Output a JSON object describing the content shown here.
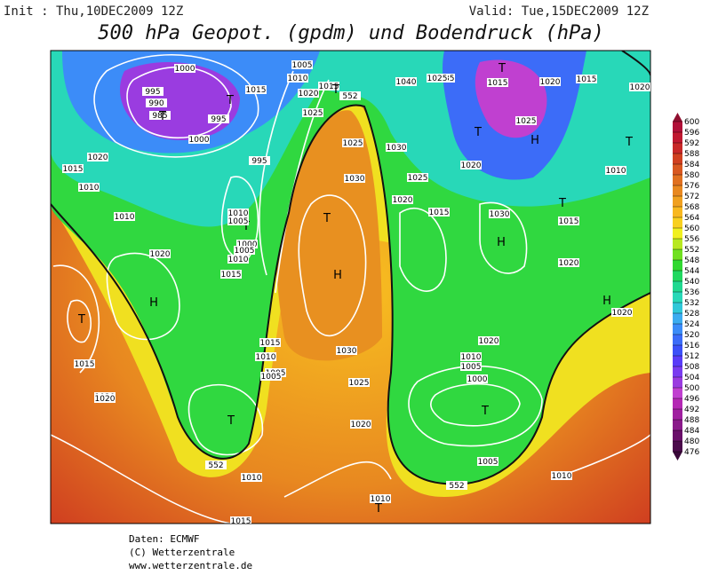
{
  "header": {
    "init": "Init : Thu,10DEC2009 12Z",
    "valid": "Valid: Tue,15DEC2009 12Z",
    "title": "500 hPa Geopot. (gpdm) und Bodendruck (hPa)"
  },
  "colorbar": {
    "ticks": [
      476,
      480,
      484,
      488,
      492,
      496,
      500,
      504,
      508,
      512,
      516,
      520,
      524,
      528,
      532,
      536,
      540,
      544,
      548,
      552,
      556,
      560,
      564,
      568,
      572,
      576,
      580,
      584,
      588,
      592,
      596,
      600
    ],
    "colors": [
      "#4b0a4b",
      "#6a0f6a",
      "#8a1a8a",
      "#a020a0",
      "#b428b4",
      "#c040d0",
      "#9a3ce0",
      "#7a3cf0",
      "#5a3cf8",
      "#3c50f8",
      "#3c6cf8",
      "#3c8cf8",
      "#3cacf0",
      "#30c8d8",
      "#28d8b8",
      "#20d890",
      "#20d860",
      "#30d830",
      "#70e020",
      "#b8e820",
      "#f0f020",
      "#f8d020",
      "#f8b820",
      "#f0a020",
      "#e88820",
      "#e07020",
      "#d85820",
      "#d04020",
      "#c82828",
      "#c01830",
      "#b01038"
    ]
  },
  "map_labels": [
    "1000",
    "1005",
    "1010",
    "1020",
    "1015",
    "1025",
    "552",
    "T",
    "995",
    "990",
    "985",
    "T",
    "995",
    "1000",
    "995",
    "T",
    "1025",
    "1040",
    "1035",
    "T",
    "1015",
    "1020",
    "1015",
    "1020",
    "1025",
    "H",
    "T",
    "1020",
    "1030",
    "1030",
    "T",
    "1015",
    "1010",
    "1010",
    "1020",
    "T",
    "1000",
    "1005",
    "1010",
    "1015",
    "H",
    "1010",
    "1005",
    "T",
    "1015",
    "1020",
    "H",
    "1025",
    "1020",
    "1015",
    "1030",
    "H",
    "1015",
    "1025",
    "1030",
    "1020",
    "T",
    "1015",
    "1010",
    "T",
    "1020",
    "H",
    "1020",
    "1010",
    "1005",
    "1000",
    "1020",
    "T",
    "1005",
    "1015",
    "1010",
    "1005",
    "1020",
    "T",
    "1010",
    "552",
    "1025",
    "1020",
    "1005",
    "552",
    "1010",
    "1010",
    "1015",
    "T"
  ],
  "footer": [
    "Daten: ECMWF",
    "(C) Wetterzentrale",
    "www.wetterzentrale.de"
  ]
}
